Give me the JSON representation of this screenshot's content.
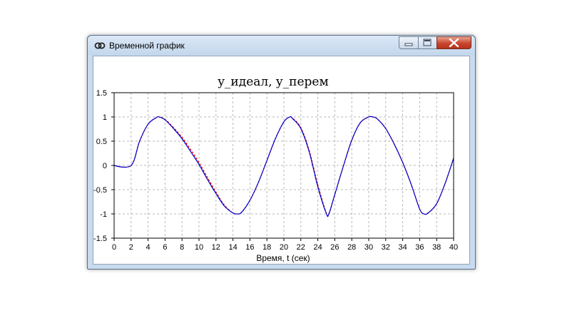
{
  "window": {
    "title": "Временной график",
    "icons": {
      "app": "app-logo-icon",
      "minimize": "minimize-icon",
      "maximize": "maximize-icon",
      "close": "close-icon"
    }
  },
  "colors": {
    "ideal": "#e00000",
    "perem": "#0000cc",
    "grid": "#b8b8b8"
  },
  "chart_data": {
    "type": "line",
    "title": "y_идеал, y_перем",
    "xlabel": "Время, t (сек)",
    "ylabel": "",
    "xlim": [
      0,
      40
    ],
    "ylim": [
      -1.5,
      1.5
    ],
    "x_ticks": [
      0,
      2,
      4,
      6,
      8,
      10,
      12,
      14,
      16,
      18,
      20,
      22,
      24,
      26,
      28,
      30,
      32,
      34,
      36,
      38,
      40
    ],
    "x_tick_labels": [
      "0",
      "2",
      "4",
      "6",
      "8",
      "10",
      "12",
      "14",
      "16",
      "18",
      "20",
      "22",
      "24",
      "26",
      "28",
      "30",
      "32",
      "34",
      "36",
      "38",
      "40"
    ],
    "y_ticks": [
      -1.5,
      -1,
      -0.5,
      0,
      0.5,
      1,
      1.5
    ],
    "y_tick_labels": [
      "-1.5",
      "-1",
      "-0.5",
      "0",
      "0.5",
      "1",
      "1.5"
    ],
    "grid": true,
    "series": [
      {
        "name": "",
        "style": "dashed",
        "color": "#e00000",
        "x": [
          0,
          2,
          3,
          4,
          5,
          5.3,
          6,
          7,
          8,
          9,
          10,
          11,
          12,
          13,
          14,
          14.5,
          15,
          16,
          17,
          18,
          19,
          20,
          20.7,
          21,
          22,
          23,
          24,
          25,
          25.3,
          26,
          27,
          28,
          29,
          30,
          30.5,
          31,
          32,
          33,
          34,
          35,
          36,
          36.5,
          37,
          38,
          39,
          40
        ],
        "y": [
          0,
          0,
          0.5,
          0.85,
          0.99,
          1.0,
          0.95,
          0.78,
          0.58,
          0.33,
          0.06,
          -0.25,
          -0.55,
          -0.82,
          -0.98,
          -1.0,
          -0.97,
          -0.72,
          -0.35,
          0.1,
          0.55,
          0.9,
          1.0,
          0.98,
          0.78,
          0.3,
          -0.4,
          -0.98,
          -1.0,
          -0.6,
          -0.02,
          0.52,
          0.88,
          1.0,
          1.0,
          0.96,
          0.76,
          0.44,
          0.06,
          -0.39,
          -0.9,
          -1.0,
          -0.98,
          -0.79,
          -0.37,
          0.15
        ]
      },
      {
        "name": "",
        "style": "solid",
        "color": "#0000cc",
        "x": [
          0,
          2,
          3,
          4,
          5,
          5.3,
          6,
          7,
          8,
          9,
          10,
          11,
          12,
          13,
          14,
          14.5,
          15,
          16,
          17,
          18,
          19,
          20,
          20.7,
          21,
          22,
          23,
          24,
          25,
          25.3,
          26,
          27,
          28,
          29,
          30,
          30.5,
          31,
          32,
          33,
          34,
          35,
          36,
          36.5,
          37,
          38,
          39,
          40
        ],
        "y": [
          0,
          0,
          0.5,
          0.85,
          0.99,
          1.0,
          0.94,
          0.76,
          0.55,
          0.29,
          0.02,
          -0.29,
          -0.58,
          -0.84,
          -0.98,
          -1.0,
          -0.97,
          -0.72,
          -0.35,
          0.1,
          0.55,
          0.9,
          1.0,
          0.97,
          0.76,
          0.27,
          -0.44,
          -0.99,
          -1.0,
          -0.6,
          -0.02,
          0.52,
          0.88,
          1.0,
          1.0,
          0.96,
          0.76,
          0.44,
          0.06,
          -0.39,
          -0.9,
          -1.0,
          -0.98,
          -0.79,
          -0.37,
          0.15
        ]
      }
    ]
  }
}
